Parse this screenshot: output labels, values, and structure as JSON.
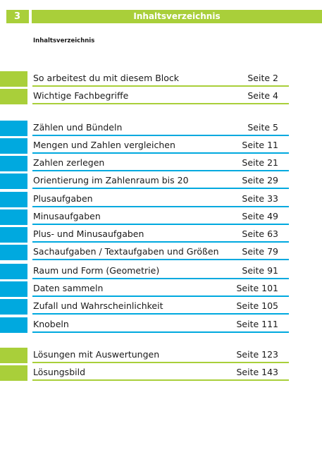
{
  "header": {
    "page_number": "3",
    "title": "Inhaltsverzeichnis"
  },
  "subheading": "Inhaltsverzeichnis",
  "colors": {
    "green": "#a9cf3a",
    "blue": "#00a9df"
  },
  "entries": [
    {
      "label": "So arbeitest du mit diesem Block",
      "page": "Seite 2",
      "color": "green"
    },
    {
      "label": "Wichtige Fachbegriffe",
      "page": "Seite 4",
      "color": "green"
    },
    {
      "label": "Zählen und Bündeln",
      "page": "Seite 5",
      "color": "blue"
    },
    {
      "label": "Mengen und Zahlen vergleichen",
      "page": "Seite 11",
      "color": "blue"
    },
    {
      "label": "Zahlen zerlegen",
      "page": "Seite 21",
      "color": "blue"
    },
    {
      "label": "Orientierung im Zahlenraum bis 20",
      "page": "Seite 29",
      "color": "blue"
    },
    {
      "label": "Plusaufgaben",
      "page": "Seite 33",
      "color": "blue"
    },
    {
      "label": "Minusaufgaben",
      "page": "Seite 49",
      "color": "blue"
    },
    {
      "label": "Plus- und Minusaufgaben",
      "page": "Seite 63",
      "color": "blue"
    },
    {
      "label": "Sachaufgaben / Textaufgaben und Größen",
      "page": "Seite 79",
      "color": "blue"
    },
    {
      "label": "Raum und Form (Geometrie)",
      "page": "Seite 91",
      "color": "blue"
    },
    {
      "label": "Daten sammeln",
      "page": "Seite 101",
      "color": "blue"
    },
    {
      "label": "Zufall und Wahrscheinlichkeit",
      "page": "Seite 105",
      "color": "blue"
    },
    {
      "label": "Knobeln",
      "page": "Seite 111",
      "color": "blue"
    },
    {
      "label": "Lösungen mit Auswertungen",
      "page": "Seite 123",
      "color": "green"
    },
    {
      "label": "Lösungsbild",
      "page": "Seite 143",
      "color": "green"
    }
  ]
}
